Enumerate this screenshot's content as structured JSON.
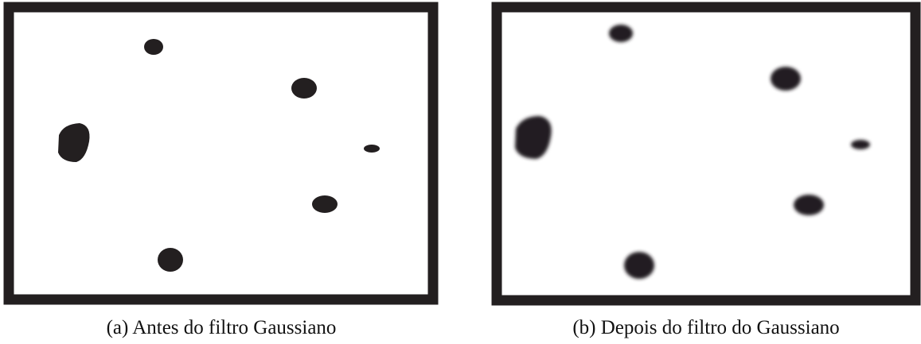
{
  "figure": {
    "panels": [
      {
        "caption": "(a) Antes do filtro Gaussiano"
      },
      {
        "caption": "(b) Depois do filtro do Gaussiano"
      }
    ]
  }
}
